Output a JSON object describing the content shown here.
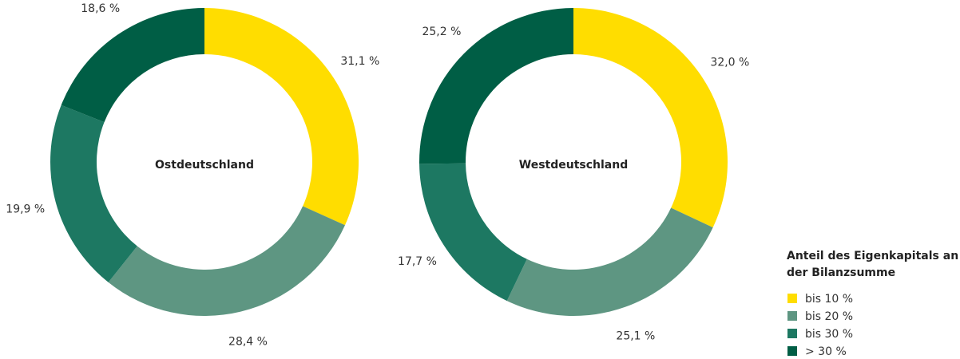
{
  "legend": {
    "title": [
      "Anteil des Eigenkapitals an",
      "der Bilanzsumme"
    ],
    "items": [
      "bis 10 %",
      "bis 20 %",
      "bis 30 %",
      "> 30 %"
    ],
    "colors": [
      "#ffdd00",
      "#5e9682",
      "#1d7862",
      "#005e45"
    ]
  },
  "chart_data": [
    {
      "type": "donut",
      "center_label": "Ostdeutschland",
      "values": [
        31.1,
        28.4,
        19.9,
        18.6
      ],
      "value_labels": [
        "31,1 %",
        "28,4 %",
        "19,9 %",
        "18,6 %"
      ]
    },
    {
      "type": "donut",
      "center_label": "Westdeutschland",
      "values": [
        32.0,
        25.1,
        17.7,
        25.2
      ],
      "value_labels": [
        "32,0 %",
        "25,1 %",
        "17,7 %",
        "25,2 %"
      ]
    }
  ]
}
